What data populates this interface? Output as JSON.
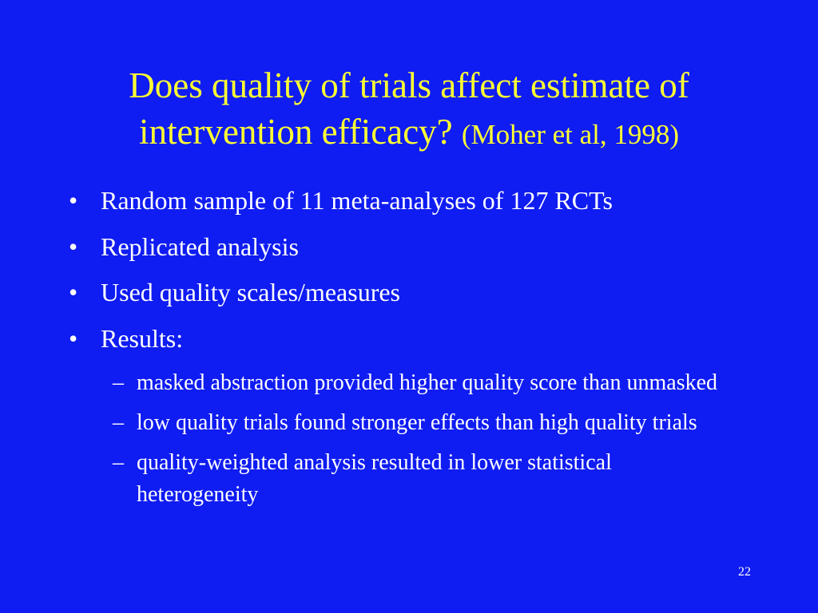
{
  "title": {
    "lines": [
      "Does quality of trials affect estimate of",
      "intervention efficacy?"
    ],
    "citation": "(Moher et al, 1998)"
  },
  "bullets": [
    "Random sample of 11 meta-analyses of 127 RCTs",
    "Replicated analysis",
    "Used quality scales/measures",
    "Results:"
  ],
  "sub_bullets": [
    "masked abstraction provided higher quality score than unmasked",
    "low quality trials found stronger effects than high quality trials",
    "quality-weighted analysis resulted in lower statistical heterogeneity"
  ],
  "page_number": "22"
}
